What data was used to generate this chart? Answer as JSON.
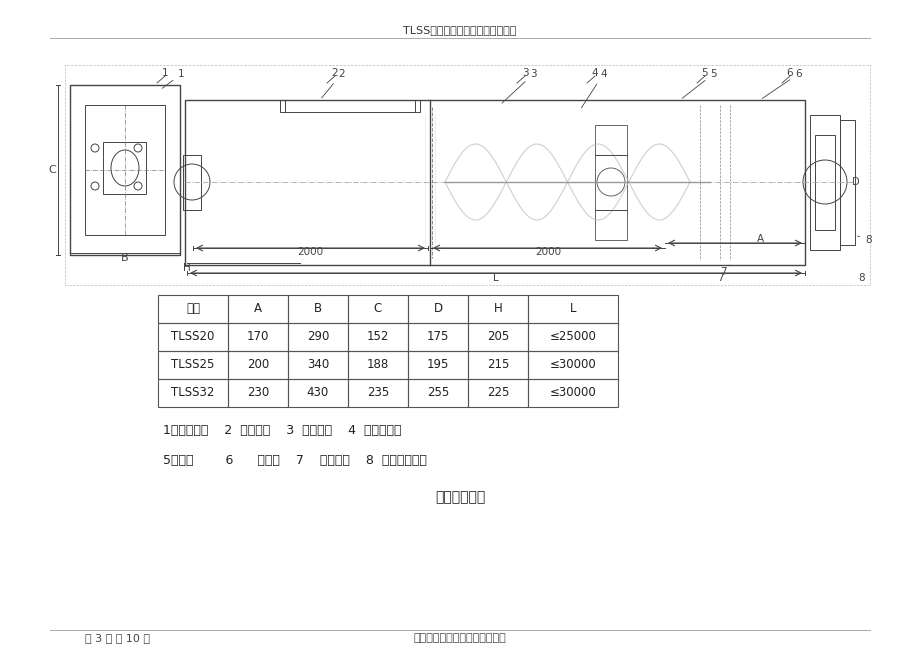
{
  "title": "TLSS型系列螺旋输送机使用说明书",
  "page_footer_left": "第 3 页 共 10 页",
  "page_footer_right": "湖北三江航天机电设备有限公司",
  "table_headers": [
    "型号",
    "A",
    "B",
    "C",
    "D",
    "H",
    "L"
  ],
  "table_rows": [
    [
      "TLSS20",
      "170",
      "290",
      "152",
      "175",
      "205",
      "≤25000"
    ],
    [
      "TLSS25",
      "200",
      "340",
      "188",
      "195",
      "215",
      "≤30000"
    ],
    [
      "TLSS32",
      "230",
      "430",
      "235",
      "255",
      "225",
      "≤30000"
    ]
  ],
  "legend_line1": "1、减速电机    2  、进料口    3  、螺旋轴    4  、悬拉轴承",
  "legend_line2": "5、机盖        6      、机壳    7    、出料口    8  、两端轴承座",
  "caption": "图一、结构图",
  "bg_color": "#ffffff",
  "drawing_color": "#444444",
  "table_border_color": "#555555"
}
